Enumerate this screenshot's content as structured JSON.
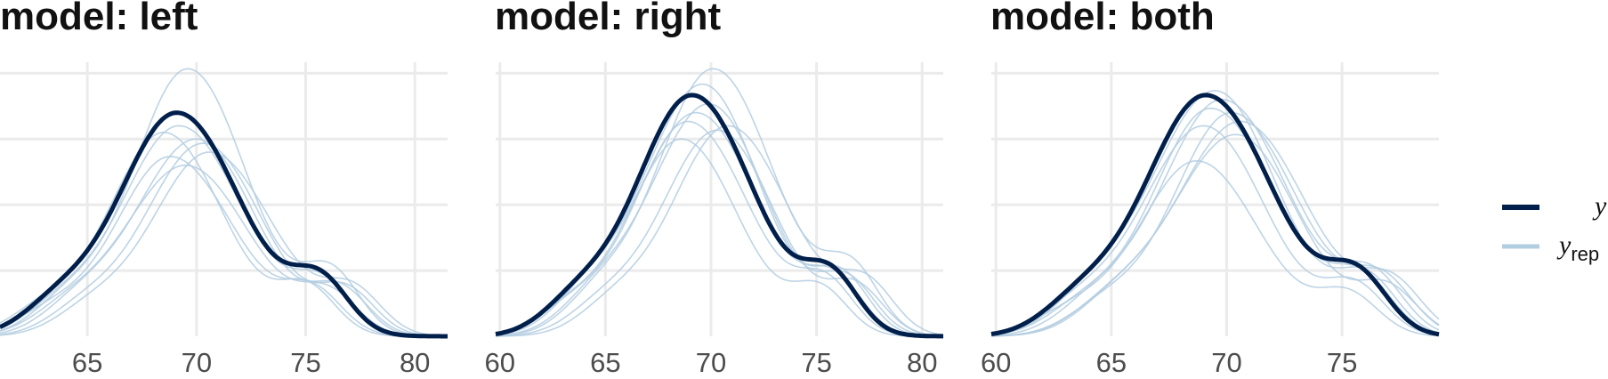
{
  "chart_data": [
    {
      "type": "line",
      "title": "model: left",
      "xlim": [
        61,
        81.5
      ],
      "ylim": [
        0,
        0.125
      ],
      "x_ticks": [
        65,
        70,
        75,
        80
      ],
      "x_tick_labels": [
        "65",
        "70",
        "75",
        "80"
      ],
      "y_gridlines": [
        0.03,
        0.06,
        0.09,
        0.12
      ],
      "series_y": {
        "peak": 69.1,
        "peak_height": 0.102
      },
      "series_yrep": [
        {
          "peak": 69.6,
          "peak_height": 0.122
        },
        {
          "peak": 69.2,
          "peak_height": 0.096
        },
        {
          "peak": 70.0,
          "peak_height": 0.09
        },
        {
          "peak": 68.8,
          "peak_height": 0.082
        },
        {
          "peak": 70.3,
          "peak_height": 0.088
        },
        {
          "peak": 69.5,
          "peak_height": 0.078
        },
        {
          "peak": 68.5,
          "peak_height": 0.093
        },
        {
          "peak": 70.6,
          "peak_height": 0.084
        }
      ]
    },
    {
      "type": "line",
      "title": "model: right",
      "xlim": [
        59.8,
        81
      ],
      "ylim": [
        0,
        0.125
      ],
      "x_ticks": [
        60,
        65,
        70,
        75,
        80
      ],
      "x_tick_labels": [
        "60",
        "65",
        "70",
        "75",
        "80"
      ],
      "y_gridlines": [
        0.03,
        0.06,
        0.09,
        0.12
      ],
      "series_y": {
        "peak": 69.1,
        "peak_height": 0.11
      },
      "series_yrep": [
        {
          "peak": 70.1,
          "peak_height": 0.122
        },
        {
          "peak": 69.6,
          "peak_height": 0.115
        },
        {
          "peak": 68.9,
          "peak_height": 0.098
        },
        {
          "peak": 70.3,
          "peak_height": 0.094
        },
        {
          "peak": 69.3,
          "peak_height": 0.102
        },
        {
          "peak": 68.6,
          "peak_height": 0.09
        },
        {
          "peak": 70.8,
          "peak_height": 0.096
        },
        {
          "peak": 69.9,
          "peak_height": 0.106
        }
      ]
    },
    {
      "type": "line",
      "title": "model: both",
      "xlim": [
        59.8,
        79.2
      ],
      "ylim": [
        0,
        0.125
      ],
      "x_ticks": [
        60,
        65,
        70,
        75
      ],
      "x_tick_labels": [
        "60",
        "65",
        "70",
        "75"
      ],
      "y_gridlines": [
        0.03,
        0.06,
        0.09,
        0.12
      ],
      "series_y": {
        "peak": 69.1,
        "peak_height": 0.11
      },
      "series_yrep": [
        {
          "peak": 69.5,
          "peak_height": 0.112
        },
        {
          "peak": 70.2,
          "peak_height": 0.102
        },
        {
          "peak": 69.0,
          "peak_height": 0.096
        },
        {
          "peak": 70.6,
          "peak_height": 0.098
        },
        {
          "peak": 68.7,
          "peak_height": 0.08
        },
        {
          "peak": 69.8,
          "peak_height": 0.108
        },
        {
          "peak": 70.4,
          "peak_height": 0.092
        },
        {
          "peak": 69.3,
          "peak_height": 0.104
        }
      ]
    }
  ],
  "legend": {
    "placement": "right",
    "items": [
      {
        "label": "y",
        "subscript": "",
        "color": "#011f4b"
      },
      {
        "label": "y",
        "subscript": "rep",
        "color": "#b3cde0"
      }
    ]
  },
  "colors": {
    "y": "#011f4b",
    "yrep": "#b3cde0",
    "grid": "#ebebeb"
  }
}
